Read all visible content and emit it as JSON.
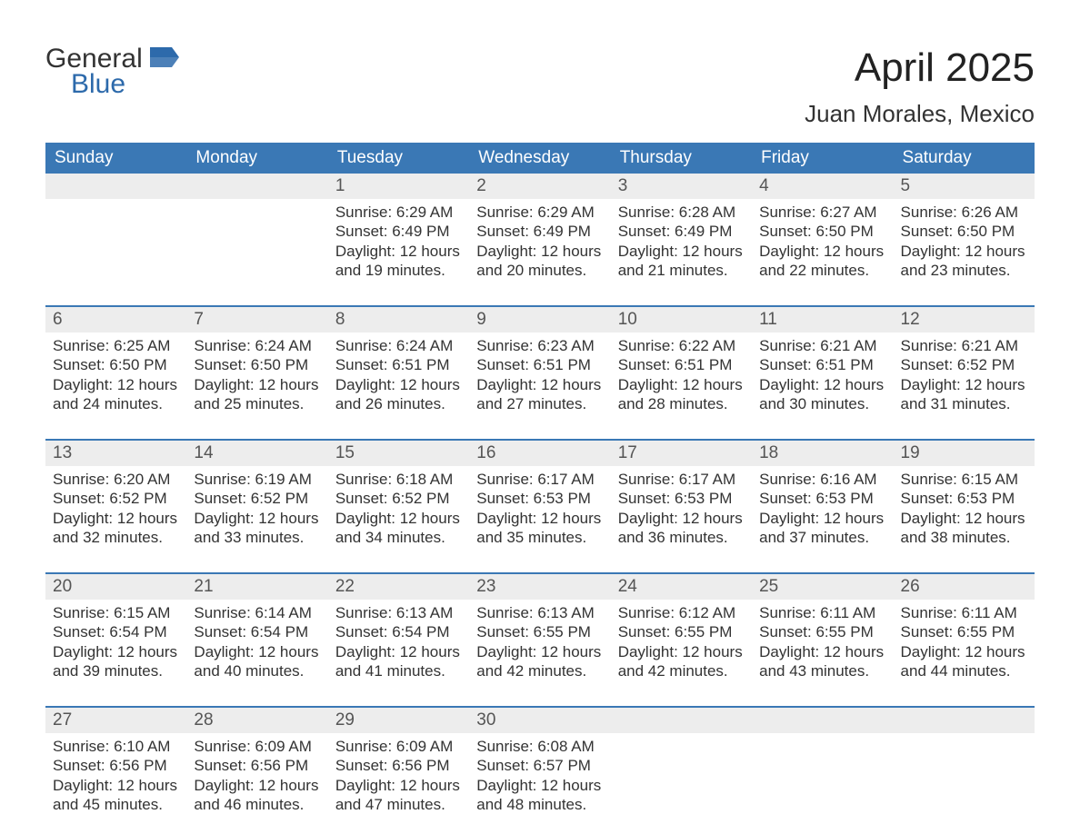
{
  "logo": {
    "line1": "General",
    "line2": "Blue",
    "flag_color": "#2d6aab",
    "text_color_primary": "#333333",
    "text_color_accent": "#2d6aab"
  },
  "title": {
    "month_year": "April 2025",
    "location": "Juan Morales, Mexico"
  },
  "colors": {
    "header_bg": "#3a78b5",
    "header_text": "#ffffff",
    "band_bg": "#ededed",
    "band_text": "#555555",
    "body_text": "#333333",
    "border": "#3a78b5",
    "page_bg": "#ffffff"
  },
  "weekdays": [
    "Sunday",
    "Monday",
    "Tuesday",
    "Wednesday",
    "Thursday",
    "Friday",
    "Saturday"
  ],
  "weeks": [
    [
      {
        "num": "",
        "sunrise": "",
        "sunset": "",
        "daylight1": "",
        "daylight2": ""
      },
      {
        "num": "",
        "sunrise": "",
        "sunset": "",
        "daylight1": "",
        "daylight2": ""
      },
      {
        "num": "1",
        "sunrise": "Sunrise: 6:29 AM",
        "sunset": "Sunset: 6:49 PM",
        "daylight1": "Daylight: 12 hours",
        "daylight2": "and 19 minutes."
      },
      {
        "num": "2",
        "sunrise": "Sunrise: 6:29 AM",
        "sunset": "Sunset: 6:49 PM",
        "daylight1": "Daylight: 12 hours",
        "daylight2": "and 20 minutes."
      },
      {
        "num": "3",
        "sunrise": "Sunrise: 6:28 AM",
        "sunset": "Sunset: 6:49 PM",
        "daylight1": "Daylight: 12 hours",
        "daylight2": "and 21 minutes."
      },
      {
        "num": "4",
        "sunrise": "Sunrise: 6:27 AM",
        "sunset": "Sunset: 6:50 PM",
        "daylight1": "Daylight: 12 hours",
        "daylight2": "and 22 minutes."
      },
      {
        "num": "5",
        "sunrise": "Sunrise: 6:26 AM",
        "sunset": "Sunset: 6:50 PM",
        "daylight1": "Daylight: 12 hours",
        "daylight2": "and 23 minutes."
      }
    ],
    [
      {
        "num": "6",
        "sunrise": "Sunrise: 6:25 AM",
        "sunset": "Sunset: 6:50 PM",
        "daylight1": "Daylight: 12 hours",
        "daylight2": "and 24 minutes."
      },
      {
        "num": "7",
        "sunrise": "Sunrise: 6:24 AM",
        "sunset": "Sunset: 6:50 PM",
        "daylight1": "Daylight: 12 hours",
        "daylight2": "and 25 minutes."
      },
      {
        "num": "8",
        "sunrise": "Sunrise: 6:24 AM",
        "sunset": "Sunset: 6:51 PM",
        "daylight1": "Daylight: 12 hours",
        "daylight2": "and 26 minutes."
      },
      {
        "num": "9",
        "sunrise": "Sunrise: 6:23 AM",
        "sunset": "Sunset: 6:51 PM",
        "daylight1": "Daylight: 12 hours",
        "daylight2": "and 27 minutes."
      },
      {
        "num": "10",
        "sunrise": "Sunrise: 6:22 AM",
        "sunset": "Sunset: 6:51 PM",
        "daylight1": "Daylight: 12 hours",
        "daylight2": "and 28 minutes."
      },
      {
        "num": "11",
        "sunrise": "Sunrise: 6:21 AM",
        "sunset": "Sunset: 6:51 PM",
        "daylight1": "Daylight: 12 hours",
        "daylight2": "and 30 minutes."
      },
      {
        "num": "12",
        "sunrise": "Sunrise: 6:21 AM",
        "sunset": "Sunset: 6:52 PM",
        "daylight1": "Daylight: 12 hours",
        "daylight2": "and 31 minutes."
      }
    ],
    [
      {
        "num": "13",
        "sunrise": "Sunrise: 6:20 AM",
        "sunset": "Sunset: 6:52 PM",
        "daylight1": "Daylight: 12 hours",
        "daylight2": "and 32 minutes."
      },
      {
        "num": "14",
        "sunrise": "Sunrise: 6:19 AM",
        "sunset": "Sunset: 6:52 PM",
        "daylight1": "Daylight: 12 hours",
        "daylight2": "and 33 minutes."
      },
      {
        "num": "15",
        "sunrise": "Sunrise: 6:18 AM",
        "sunset": "Sunset: 6:52 PM",
        "daylight1": "Daylight: 12 hours",
        "daylight2": "and 34 minutes."
      },
      {
        "num": "16",
        "sunrise": "Sunrise: 6:17 AM",
        "sunset": "Sunset: 6:53 PM",
        "daylight1": "Daylight: 12 hours",
        "daylight2": "and 35 minutes."
      },
      {
        "num": "17",
        "sunrise": "Sunrise: 6:17 AM",
        "sunset": "Sunset: 6:53 PM",
        "daylight1": "Daylight: 12 hours",
        "daylight2": "and 36 minutes."
      },
      {
        "num": "18",
        "sunrise": "Sunrise: 6:16 AM",
        "sunset": "Sunset: 6:53 PM",
        "daylight1": "Daylight: 12 hours",
        "daylight2": "and 37 minutes."
      },
      {
        "num": "19",
        "sunrise": "Sunrise: 6:15 AM",
        "sunset": "Sunset: 6:53 PM",
        "daylight1": "Daylight: 12 hours",
        "daylight2": "and 38 minutes."
      }
    ],
    [
      {
        "num": "20",
        "sunrise": "Sunrise: 6:15 AM",
        "sunset": "Sunset: 6:54 PM",
        "daylight1": "Daylight: 12 hours",
        "daylight2": "and 39 minutes."
      },
      {
        "num": "21",
        "sunrise": "Sunrise: 6:14 AM",
        "sunset": "Sunset: 6:54 PM",
        "daylight1": "Daylight: 12 hours",
        "daylight2": "and 40 minutes."
      },
      {
        "num": "22",
        "sunrise": "Sunrise: 6:13 AM",
        "sunset": "Sunset: 6:54 PM",
        "daylight1": "Daylight: 12 hours",
        "daylight2": "and 41 minutes."
      },
      {
        "num": "23",
        "sunrise": "Sunrise: 6:13 AM",
        "sunset": "Sunset: 6:55 PM",
        "daylight1": "Daylight: 12 hours",
        "daylight2": "and 42 minutes."
      },
      {
        "num": "24",
        "sunrise": "Sunrise: 6:12 AM",
        "sunset": "Sunset: 6:55 PM",
        "daylight1": "Daylight: 12 hours",
        "daylight2": "and 42 minutes."
      },
      {
        "num": "25",
        "sunrise": "Sunrise: 6:11 AM",
        "sunset": "Sunset: 6:55 PM",
        "daylight1": "Daylight: 12 hours",
        "daylight2": "and 43 minutes."
      },
      {
        "num": "26",
        "sunrise": "Sunrise: 6:11 AM",
        "sunset": "Sunset: 6:55 PM",
        "daylight1": "Daylight: 12 hours",
        "daylight2": "and 44 minutes."
      }
    ],
    [
      {
        "num": "27",
        "sunrise": "Sunrise: 6:10 AM",
        "sunset": "Sunset: 6:56 PM",
        "daylight1": "Daylight: 12 hours",
        "daylight2": "and 45 minutes."
      },
      {
        "num": "28",
        "sunrise": "Sunrise: 6:09 AM",
        "sunset": "Sunset: 6:56 PM",
        "daylight1": "Daylight: 12 hours",
        "daylight2": "and 46 minutes."
      },
      {
        "num": "29",
        "sunrise": "Sunrise: 6:09 AM",
        "sunset": "Sunset: 6:56 PM",
        "daylight1": "Daylight: 12 hours",
        "daylight2": "and 47 minutes."
      },
      {
        "num": "30",
        "sunrise": "Sunrise: 6:08 AM",
        "sunset": "Sunset: 6:57 PM",
        "daylight1": "Daylight: 12 hours",
        "daylight2": "and 48 minutes."
      },
      {
        "num": "",
        "sunrise": "",
        "sunset": "",
        "daylight1": "",
        "daylight2": ""
      },
      {
        "num": "",
        "sunrise": "",
        "sunset": "",
        "daylight1": "",
        "daylight2": ""
      },
      {
        "num": "",
        "sunrise": "",
        "sunset": "",
        "daylight1": "",
        "daylight2": ""
      }
    ]
  ]
}
